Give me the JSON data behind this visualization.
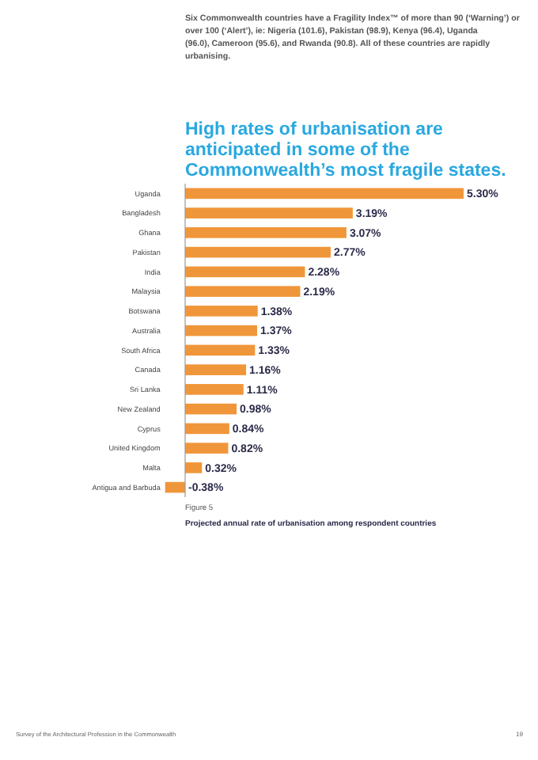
{
  "chart_data": {
    "type": "bar",
    "orientation": "horizontal",
    "title": "High rates of urbanisation are anticipated in some of the Commonwealth’s most fragile states.",
    "subtitle": "Projected annual rate of urbanisation among respondent countries",
    "categories": [
      "Uganda",
      "Bangladesh",
      "Ghana",
      "Pakistan",
      "India",
      "Malaysia",
      "Botswana",
      "Australia",
      "South Africa",
      "Canada",
      "Sri Lanka",
      "New Zealand",
      "Cyprus",
      "United Kingdom",
      "Malta",
      "Antigua and Barbuda"
    ],
    "values": [
      5.3,
      3.19,
      3.07,
      2.77,
      2.28,
      2.19,
      1.38,
      1.37,
      1.33,
      1.16,
      1.11,
      0.98,
      0.84,
      0.82,
      0.32,
      -0.38
    ],
    "value_labels": [
      "5.30%",
      "3.19%",
      "3.07%",
      "2.77%",
      "2.28%",
      "2.19%",
      "1.38%",
      "1.37%",
      "1.33%",
      "1.16%",
      "1.11%",
      "0.98%",
      "0.84%",
      "0.82%",
      "0.32%",
      "-0.38%"
    ],
    "color": "#f0963a",
    "annotations": [
      "Six Commonwealth countries have a Fragility Index™ of more than 90 (‘Warning’) or over 100 (‘Alert’), ie: Nigeria (101.6), Pakistan (98.9), Kenya (96.4), Uganda (96.0), Cameroon (95.6), and Rwanda (90.8). All of these countries are rapidly urbanising.",
      "Figure 5",
      "Survey of the Architectural Profession in the Commonwealth",
      "19"
    ]
  }
}
